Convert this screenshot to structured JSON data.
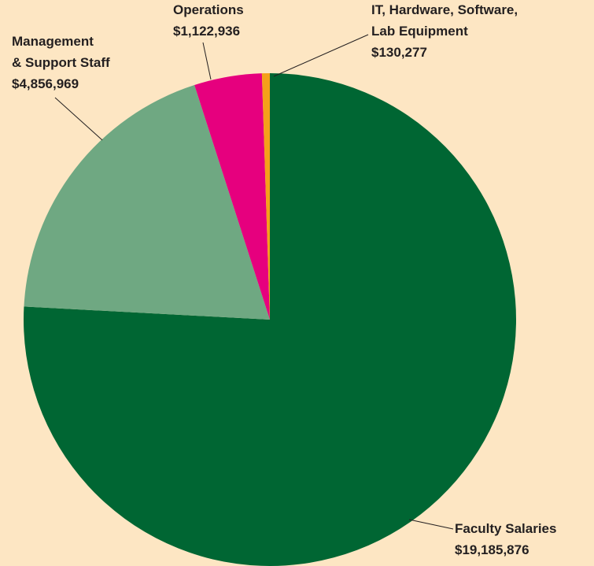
{
  "chart_data": {
    "type": "pie",
    "categories": [
      [
        "Faculty Salaries"
      ],
      [
        "Management",
        "& Support Staff"
      ],
      [
        "Operations"
      ],
      [
        "IT, Hardware, Software,",
        "Lab Equipment"
      ]
    ],
    "values": [
      19185876,
      4856969,
      1122936,
      130277
    ],
    "value_labels": [
      "$19,185,876",
      "$4,856,969",
      "$1,122,936",
      "$130,277"
    ],
    "colors": [
      "#006633",
      "#6fa882",
      "#e6007e",
      "#f5a01a"
    ]
  }
}
